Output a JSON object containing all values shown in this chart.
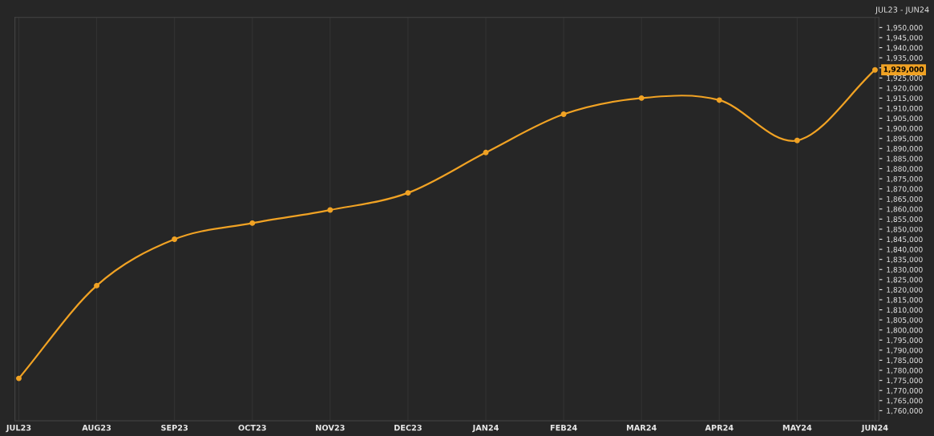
{
  "chart_data": {
    "type": "line",
    "categories": [
      "JUL23",
      "AUG23",
      "SEP23",
      "OCT23",
      "NOV23",
      "DEC23",
      "JAN24",
      "FEB24",
      "MAR24",
      "APR24",
      "MAY24",
      "JUN24"
    ],
    "series": [
      {
        "color": "#f0a224",
        "values": [
          1776000,
          1822000,
          1845000,
          1853000,
          1859500,
          1868000,
          1888000,
          1907000,
          1915000,
          1914000,
          1894000,
          1929000
        ],
        "value_labels": [
          null,
          null,
          null,
          null,
          null,
          null,
          null,
          null,
          null,
          null,
          null,
          "1,929,000"
        ]
      }
    ],
    "ylim": [
      1755000,
      1955000
    ],
    "yticks": [
      {
        "value": 1760000,
        "label": "1,760,000"
      },
      {
        "value": 1765000,
        "label": "1,765,000"
      },
      {
        "value": 1770000,
        "label": "1,770,000"
      },
      {
        "value": 1775000,
        "label": "1,775,000"
      },
      {
        "value": 1780000,
        "label": "1,780,000"
      },
      {
        "value": 1785000,
        "label": "1,785,000"
      },
      {
        "value": 1790000,
        "label": "1,790,000"
      },
      {
        "value": 1795000,
        "label": "1,795,000"
      },
      {
        "value": 1800000,
        "label": "1,800,000"
      },
      {
        "value": 1805000,
        "label": "1,805,000"
      },
      {
        "value": 1810000,
        "label": "1,810,000"
      },
      {
        "value": 1815000,
        "label": "1,815,000"
      },
      {
        "value": 1820000,
        "label": "1,820,000"
      },
      {
        "value": 1825000,
        "label": "1,825,000"
      },
      {
        "value": 1830000,
        "label": "1,830,000"
      },
      {
        "value": 1835000,
        "label": "1,835,000"
      },
      {
        "value": 1840000,
        "label": "1,840,000"
      },
      {
        "value": 1845000,
        "label": "1,845,000"
      },
      {
        "value": 1850000,
        "label": "1,850,000"
      },
      {
        "value": 1855000,
        "label": "1,855,000"
      },
      {
        "value": 1860000,
        "label": "1,860,000"
      },
      {
        "value": 1865000,
        "label": "1,865,000"
      },
      {
        "value": 1870000,
        "label": "1,870,000"
      },
      {
        "value": 1875000,
        "label": "1,875,000"
      },
      {
        "value": 1880000,
        "label": "1,880,000"
      },
      {
        "value": 1885000,
        "label": "1,885,000"
      },
      {
        "value": 1890000,
        "label": "1,890,000"
      },
      {
        "value": 1895000,
        "label": "1,895,000"
      },
      {
        "value": 1900000,
        "label": "1,900,000"
      },
      {
        "value": 1905000,
        "label": "1,905,000"
      },
      {
        "value": 1910000,
        "label": "1,910,000"
      },
      {
        "value": 1915000,
        "label": "1,915,000"
      },
      {
        "value": 1920000,
        "label": "1,920,000"
      },
      {
        "value": 1925000,
        "label": "1,925,000"
      },
      {
        "value": 1930000,
        "label": null
      },
      {
        "value": 1935000,
        "label": "1,935,000"
      },
      {
        "value": 1940000,
        "label": "1,940,000"
      },
      {
        "value": 1945000,
        "label": "1,945,000"
      },
      {
        "value": 1950000,
        "label": "1,950,000"
      }
    ],
    "annotations": [
      "JUL23 - JUN24"
    ],
    "grid": "x",
    "marker": "circle",
    "line_style": "solid",
    "legend": false
  }
}
